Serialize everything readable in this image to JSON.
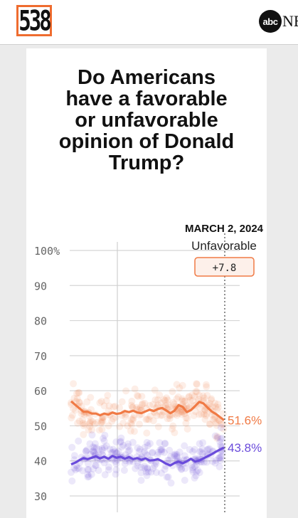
{
  "header": {
    "logo_text": "538",
    "partner_circle": "abc",
    "partner_text": "NE"
  },
  "chart_data": {
    "type": "line",
    "title": "Do Americans have a favorable or unfavorable opinion of Donald Trump?",
    "title_lines": [
      "Do Americans",
      "have a favorable",
      "or unfavorable",
      "opinion of Donald",
      "Trump?"
    ],
    "ylim": [
      30,
      100
    ],
    "yticks": [
      100,
      90,
      80,
      70,
      60,
      50,
      40,
      30
    ],
    "ytick_labels": [
      "100%",
      "90",
      "80",
      "70",
      "60",
      "50",
      "40",
      "30"
    ],
    "grid": true,
    "annotation": {
      "date": "MARCH 2, 2024",
      "label": "Unfavorable",
      "margin": "+7.8"
    },
    "series": [
      {
        "label": "51.6%",
        "color": "#f07a45",
        "values": [
          57,
          56,
          55,
          54,
          54,
          53.5,
          53.5,
          53,
          53.5,
          53.2,
          53.8,
          53.4,
          53.6,
          54.2,
          53.9,
          54.3,
          53.8,
          53.6,
          54.1,
          54.6,
          54.2,
          54.8,
          55.1,
          54.4,
          53.6,
          54.3,
          55.9,
          55.4,
          53.9,
          54.5,
          55.6,
          56.8,
          56.4,
          55.2,
          54.1,
          53.4,
          52.5,
          51.6
        ]
      },
      {
        "label": "43.8%",
        "color": "#6a4bdb",
        "values": [
          39,
          39.5,
          40.2,
          40.8,
          40.5,
          40.9,
          41.3,
          40.7,
          41.2,
          40.6,
          41.4,
          40.9,
          41.2,
          40.6,
          41.1,
          40.5,
          40.8,
          40.3,
          40.7,
          40.1,
          40.2,
          40.5,
          39.9,
          39.2,
          38.7,
          39.4,
          39.8,
          39.3,
          39.9,
          40.6,
          39.8,
          40.1,
          40.7,
          41.3,
          41.9,
          42.6,
          43.2,
          43.8
        ]
      }
    ]
  }
}
